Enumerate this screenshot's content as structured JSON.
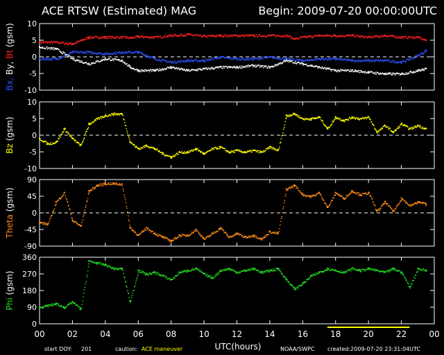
{
  "header": {
    "title": "ACE RTSW (Estimated) MAG",
    "begin": "Begin: 2009-07-20 00:00:00UTC"
  },
  "footer": {
    "start_doy_label": "start DOY:",
    "start_doy": "201",
    "caution_label": "caution:",
    "caution_text": "ACE maneuver",
    "agency": "NOAA/SWPC",
    "created": "created:2009-07-20 23:31:04UTC"
  },
  "colors": {
    "background": "#000000",
    "axes": "#ffffff",
    "bt": "#ff2020",
    "bx": "#3050ff",
    "by": "#ffffff",
    "bz": "#ffff00",
    "theta": "#ff8c1a",
    "phi": "#22dd22",
    "maneuver_bar": "#ffff00"
  },
  "chart_data": [
    {
      "type": "scatter",
      "panel": "B-field components",
      "ylabel_parts": [
        {
          "text": "Bx,",
          "color": "#3050ff"
        },
        {
          "text": "By,",
          "color": "#ffffff"
        },
        {
          "text": "Bt",
          "color": "#ff2020"
        },
        {
          "text": "(gsm)",
          "color": "#ffffff"
        }
      ],
      "ylim": [
        -10,
        10
      ],
      "yticks": [
        "10",
        "5",
        "0",
        "-5",
        "-10"
      ],
      "ytick_values": [
        10,
        5,
        0,
        -5,
        -10
      ],
      "zero_line": true,
      "series": [
        {
          "name": "Bt",
          "color": "#ff2020",
          "x": [
            0,
            1,
            2,
            3,
            4,
            5,
            5.5,
            6,
            7,
            8,
            9,
            10,
            11,
            12,
            13,
            14,
            15,
            15.5,
            16,
            17,
            18,
            19,
            20,
            21,
            22,
            23,
            23.5
          ],
          "y": [
            4.5,
            4.5,
            4,
            6,
            6,
            6,
            5.8,
            6.2,
            6,
            6.5,
            6.8,
            6.3,
            6.5,
            6.5,
            6.5,
            6.5,
            6.5,
            5.5,
            6,
            6.5,
            6.5,
            6.5,
            6,
            6.5,
            6,
            6,
            5
          ]
        },
        {
          "name": "Bx",
          "color": "#3050ff",
          "x": [
            0,
            1,
            2,
            3,
            4,
            5,
            6,
            7,
            8,
            9,
            10,
            11,
            12,
            13,
            14,
            15,
            16,
            17,
            18,
            19,
            20,
            21,
            22,
            23,
            23.5
          ],
          "y": [
            -0.5,
            -0.5,
            1.5,
            1.5,
            1,
            1.5,
            1.5,
            -0.5,
            -1.5,
            -1,
            -1,
            0,
            -0.5,
            -0.5,
            0,
            -0.5,
            -1,
            -0.5,
            -0.5,
            -1,
            -1,
            -1,
            -1.5,
            0.5,
            2
          ]
        },
        {
          "name": "By",
          "color": "#ffffff",
          "x": [
            0,
            1,
            2,
            3,
            4,
            5,
            5.5,
            6,
            7,
            8,
            9,
            10,
            11,
            12,
            13,
            14,
            15,
            16,
            17,
            18,
            19,
            20,
            21,
            22,
            23,
            23.5
          ],
          "y": [
            3,
            2.5,
            -0.5,
            -2,
            -0.5,
            -1,
            -3,
            -4,
            -4,
            -3,
            -4,
            -3.5,
            -3,
            -3,
            -2.5,
            -3,
            -1,
            -2,
            -3,
            -4,
            -4,
            -4.5,
            -5,
            -5,
            -4,
            -3.5
          ]
        }
      ]
    },
    {
      "type": "scatter",
      "panel": "Bz",
      "ylabel_parts": [
        {
          "text": "Bz",
          "color": "#ffff00"
        },
        {
          "text": "(gsm)",
          "color": "#ffffff"
        }
      ],
      "ylim": [
        -10,
        10
      ],
      "yticks": [
        "10",
        "5",
        "0",
        "-5",
        "-10"
      ],
      "ytick_values": [
        10,
        5,
        0,
        -5,
        -10
      ],
      "zero_line": true,
      "series": [
        {
          "name": "Bz",
          "color": "#ffff00",
          "x": [
            0,
            0.5,
            1,
            1.5,
            2,
            2.5,
            3,
            3.5,
            4,
            4.5,
            5,
            5.5,
            6,
            6.5,
            7,
            7.5,
            8,
            8.5,
            9,
            9.5,
            10,
            10.5,
            11,
            11.5,
            12,
            12.5,
            13,
            13.5,
            14,
            14.5,
            15,
            15.5,
            16,
            16.5,
            17,
            17.5,
            18,
            18.5,
            19,
            19.5,
            20,
            20.5,
            21,
            21.5,
            22,
            22.5,
            23,
            23.5
          ],
          "y": [
            -1,
            -2.5,
            -2,
            2,
            -1,
            -3,
            3.5,
            5,
            6,
            6.5,
            6.5,
            -2,
            -4,
            -3,
            -4,
            -5.5,
            -6.5,
            -5,
            -5,
            -4,
            -5.5,
            -4,
            -3.5,
            -5,
            -4.5,
            -5,
            -4.5,
            -5,
            -3.5,
            -4.5,
            6,
            6.5,
            5,
            5,
            5.5,
            2,
            5.5,
            4.5,
            5.5,
            5,
            5.5,
            1,
            3,
            1,
            3.5,
            2,
            3,
            2
          ]
        }
      ]
    },
    {
      "type": "scatter",
      "panel": "Theta",
      "ylabel_parts": [
        {
          "text": "Theta",
          "color": "#ff8c1a"
        },
        {
          "text": "(gsm)",
          "color": "#ffffff"
        }
      ],
      "ylim": [
        -90,
        90
      ],
      "yticks": [
        "90",
        "45",
        "0",
        "-45",
        "-90"
      ],
      "ytick_values": [
        90,
        45,
        0,
        -45,
        -90
      ],
      "zero_line": true,
      "series": [
        {
          "name": "Theta",
          "color": "#ff8c1a",
          "x": [
            0,
            0.5,
            1,
            1.5,
            2,
            2.5,
            3,
            3.5,
            4,
            4.5,
            5,
            5.5,
            6,
            6.5,
            7,
            7.5,
            8,
            8.5,
            9,
            9.5,
            10,
            10.5,
            11,
            11.5,
            12,
            12.5,
            13,
            13.5,
            14,
            14.5,
            15,
            15.5,
            16,
            16.5,
            17,
            17.5,
            18,
            18.5,
            19,
            19.5,
            20,
            20.5,
            21,
            21.5,
            22,
            22.5,
            23,
            23.5
          ],
          "y": [
            -25,
            -30,
            30,
            55,
            -20,
            -35,
            60,
            75,
            80,
            80,
            78,
            -40,
            -60,
            -40,
            -55,
            -65,
            -75,
            -60,
            -60,
            -45,
            -70,
            -55,
            -40,
            -65,
            -55,
            -65,
            -60,
            -70,
            -50,
            -55,
            65,
            75,
            50,
            45,
            55,
            15,
            55,
            40,
            60,
            50,
            55,
            5,
            30,
            5,
            40,
            20,
            30,
            25
          ]
        }
      ]
    },
    {
      "type": "scatter",
      "panel": "Phi",
      "ylabel_parts": [
        {
          "text": "Phi",
          "color": "#22dd22"
        },
        {
          "text": "(gsm)",
          "color": "#ffffff"
        }
      ],
      "ylim": [
        0,
        360
      ],
      "yticks": [
        "360",
        "270",
        "180",
        "90",
        "0"
      ],
      "ytick_values": [
        360,
        270,
        180,
        90,
        0
      ],
      "zero_line": false,
      "series": [
        {
          "name": "Phi",
          "color": "#22dd22",
          "x": [
            0,
            0.5,
            1,
            1.5,
            2,
            2.5,
            3,
            3.5,
            4,
            4.5,
            5,
            5.5,
            6,
            6.5,
            7,
            7.5,
            8,
            8.5,
            9,
            9.5,
            10,
            10.5,
            11,
            11.5,
            12,
            12.5,
            13,
            13.5,
            14,
            14.5,
            15,
            15.5,
            16,
            16.5,
            17,
            17.5,
            18,
            18.5,
            19,
            19.5,
            20,
            20.5,
            21,
            21.5,
            22,
            22.5,
            23,
            23.5
          ],
          "y": [
            90,
            100,
            110,
            90,
            120,
            80,
            340,
            330,
            320,
            300,
            300,
            120,
            290,
            270,
            280,
            260,
            240,
            280,
            290,
            300,
            270,
            250,
            290,
            300,
            280,
            290,
            300,
            280,
            290,
            300,
            240,
            190,
            220,
            260,
            280,
            300,
            290,
            280,
            300,
            290,
            300,
            290,
            280,
            300,
            280,
            200,
            300,
            290
          ]
        }
      ]
    }
  ],
  "xaxis": {
    "label": "UTC(hours)",
    "tick_labels": [
      "00",
      "02",
      "04",
      "06",
      "08",
      "10",
      "12",
      "14",
      "16",
      "18",
      "20",
      "22",
      "00"
    ],
    "xlim": [
      0,
      24
    ],
    "maneuver_interval": [
      17.5,
      22.5
    ]
  }
}
